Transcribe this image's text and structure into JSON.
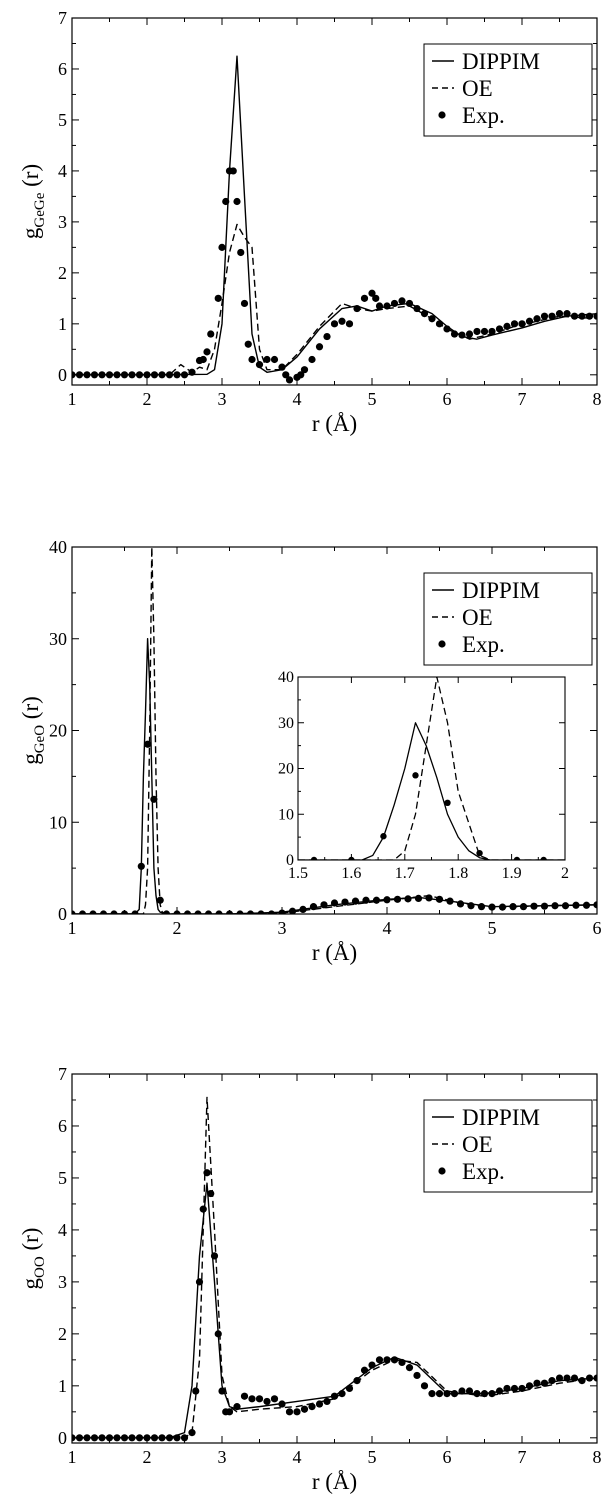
{
  "chart_data": [
    {
      "type": "line",
      "id": "gege",
      "ylabel_main": "g",
      "ylabel_sub": "GeGe",
      "ylabel_tail": " (r)",
      "xlabel": "r (Å)",
      "xlim": [
        1,
        8
      ],
      "ylim": [
        -0.2,
        7
      ],
      "xticks": [
        1,
        2,
        3,
        4,
        5,
        6,
        7,
        8
      ],
      "yticks": [
        0,
        1,
        2,
        3,
        4,
        5,
        6,
        7
      ],
      "legend_position": "top-right",
      "series": [
        {
          "name": "DIPPIM",
          "style": "solid",
          "x": [
            1,
            2.0,
            2.8,
            2.9,
            3.0,
            3.1,
            3.2,
            3.3,
            3.4,
            3.5,
            3.6,
            3.8,
            4.0,
            4.3,
            4.6,
            4.8,
            5.0,
            5.2,
            5.5,
            5.8,
            6.0,
            6.2,
            6.4,
            6.6,
            6.8,
            7.0,
            7.3,
            7.6,
            8.0
          ],
          "y": [
            0,
            0,
            0.01,
            0.1,
            1.0,
            4.0,
            6.25,
            3.5,
            0.8,
            0.15,
            0.05,
            0.1,
            0.35,
            0.9,
            1.3,
            1.35,
            1.25,
            1.35,
            1.4,
            1.2,
            0.95,
            0.75,
            0.7,
            0.78,
            0.85,
            0.92,
            1.05,
            1.15,
            1.2
          ]
        },
        {
          "name": "OE",
          "style": "dashed",
          "x": [
            1,
            2.3,
            2.45,
            2.6,
            2.7,
            2.8,
            2.9,
            3.0,
            3.1,
            3.2,
            3.3,
            3.4,
            3.5,
            3.6,
            3.8,
            4.0,
            4.3,
            4.6,
            4.8,
            5.0,
            5.2,
            5.5,
            5.8,
            6.0,
            6.3,
            6.6,
            6.9,
            7.2,
            7.5,
            8.0
          ],
          "y": [
            0,
            0,
            0.2,
            0.05,
            0.15,
            0.1,
            0.5,
            1.4,
            2.4,
            2.95,
            2.7,
            2.5,
            0.5,
            0.1,
            0.1,
            0.4,
            0.95,
            1.4,
            1.3,
            1.25,
            1.3,
            1.35,
            1.1,
            0.9,
            0.7,
            0.8,
            0.95,
            1.05,
            1.15,
            1.1
          ]
        },
        {
          "name": "Exp.",
          "style": "dots",
          "x": [
            1.0,
            1.1,
            1.2,
            1.3,
            1.4,
            1.5,
            1.6,
            1.7,
            1.8,
            1.9,
            2.0,
            2.1,
            2.2,
            2.3,
            2.4,
            2.5,
            2.6,
            2.7,
            2.75,
            2.8,
            2.85,
            2.95,
            3.0,
            3.05,
            3.1,
            3.15,
            3.2,
            3.25,
            3.3,
            3.35,
            3.4,
            3.5,
            3.6,
            3.7,
            3.8,
            3.85,
            3.9,
            4.0,
            4.05,
            4.1,
            4.2,
            4.3,
            4.4,
            4.5,
            4.6,
            4.7,
            4.8,
            4.9,
            5.0,
            5.05,
            5.1,
            5.2,
            5.3,
            5.4,
            5.5,
            5.6,
            5.7,
            5.8,
            5.9,
            6.0,
            6.1,
            6.2,
            6.3,
            6.4,
            6.5,
            6.6,
            6.7,
            6.8,
            6.9,
            7.0,
            7.1,
            7.2,
            7.3,
            7.4,
            7.5,
            7.6,
            7.7,
            7.8,
            7.9,
            8.0
          ],
          "y": [
            0,
            0,
            0,
            0,
            0,
            0,
            0,
            0,
            0,
            0,
            0,
            0,
            0,
            0,
            0,
            0,
            0.05,
            0.28,
            0.3,
            0.45,
            0.8,
            1.5,
            2.5,
            3.4,
            4.0,
            4.0,
            3.4,
            2.4,
            1.4,
            0.6,
            0.3,
            0.2,
            0.3,
            0.3,
            0.15,
            0.0,
            -0.1,
            -0.05,
            0.0,
            0.1,
            0.3,
            0.55,
            0.75,
            1.0,
            1.05,
            1.0,
            1.3,
            1.5,
            1.6,
            1.5,
            1.35,
            1.35,
            1.4,
            1.45,
            1.4,
            1.3,
            1.2,
            1.1,
            1.0,
            0.9,
            0.8,
            0.78,
            0.8,
            0.85,
            0.85,
            0.85,
            0.9,
            0.95,
            1.0,
            1.0,
            1.05,
            1.1,
            1.15,
            1.15,
            1.2,
            1.2,
            1.15,
            1.15,
            1.15,
            1.15
          ]
        }
      ]
    },
    {
      "type": "line",
      "id": "geo",
      "ylabel_main": "g",
      "ylabel_sub": "GeO",
      "ylabel_tail": " (r)",
      "xlabel": "r (Å)",
      "xlim": [
        1,
        6
      ],
      "ylim": [
        0,
        40
      ],
      "xticks": [
        1,
        2,
        3,
        4,
        5,
        6
      ],
      "yticks": [
        0,
        10,
        20,
        30,
        40
      ],
      "legend_position": "top-right",
      "series": [
        {
          "name": "DIPPIM",
          "style": "solid",
          "x": [
            1,
            1.55,
            1.6,
            1.64,
            1.66,
            1.68,
            1.7,
            1.72,
            1.74,
            1.76,
            1.78,
            1.8,
            1.82,
            1.84,
            1.9,
            2.0,
            2.5,
            3.0,
            3.5,
            4.0,
            4.3,
            4.6,
            5.0,
            5.5,
            6.0
          ],
          "y": [
            0,
            0,
            0,
            0.5,
            5,
            15,
            22,
            30,
            25,
            15,
            5,
            2,
            0.5,
            0.2,
            0,
            0,
            0,
            0.2,
            1,
            1.6,
            1.8,
            1.4,
            0.8,
            0.9,
            1.0
          ]
        },
        {
          "name": "OE",
          "style": "dashed",
          "x": [
            1,
            1.6,
            1.68,
            1.7,
            1.72,
            1.74,
            1.76,
            1.78,
            1.8,
            1.82,
            1.84,
            1.86,
            1.9,
            2.0,
            2.5,
            3.0,
            3.5,
            4.0,
            4.4,
            4.7,
            5.0,
            5.5,
            6.0
          ],
          "y": [
            0,
            0,
            0,
            1,
            5,
            20,
            40,
            30,
            15,
            5,
            1,
            0.2,
            0,
            0,
            0,
            0.1,
            0.8,
            1.5,
            2.0,
            1.2,
            0.7,
            0.9,
            1.0
          ]
        },
        {
          "name": "Exp.",
          "style": "dots",
          "x": [
            1.0,
            1.1,
            1.2,
            1.3,
            1.4,
            1.5,
            1.6,
            1.66,
            1.72,
            1.78,
            1.84,
            1.9,
            2.0,
            2.1,
            2.2,
            2.3,
            2.4,
            2.5,
            2.6,
            2.7,
            2.8,
            2.9,
            3.0,
            3.1,
            3.2,
            3.3,
            3.4,
            3.5,
            3.6,
            3.7,
            3.8,
            3.9,
            4.0,
            4.1,
            4.2,
            4.3,
            4.4,
            4.5,
            4.6,
            4.7,
            4.8,
            4.9,
            5.0,
            5.1,
            5.2,
            5.3,
            5.4,
            5.5,
            5.6,
            5.7,
            5.8,
            5.9,
            6.0
          ],
          "y": [
            0,
            0,
            0,
            0,
            0,
            0,
            0,
            5.2,
            18.5,
            12.5,
            1.5,
            0,
            0,
            0,
            0,
            0,
            0,
            0,
            0,
            0,
            0,
            0,
            0.1,
            0.3,
            0.5,
            0.8,
            1.0,
            1.2,
            1.3,
            1.4,
            1.5,
            1.5,
            1.55,
            1.6,
            1.65,
            1.7,
            1.75,
            1.6,
            1.4,
            1.1,
            0.9,
            0.8,
            0.75,
            0.75,
            0.8,
            0.8,
            0.85,
            0.85,
            0.9,
            0.9,
            0.95,
            0.95,
            1.0
          ]
        }
      ],
      "inset": {
        "xlim": [
          1.5,
          2
        ],
        "ylim": [
          0,
          40
        ],
        "xticks": [
          1.5,
          1.6,
          1.7,
          1.8,
          1.9,
          2
        ],
        "xtick_labels": [
          "1.5",
          "1.6",
          "1.7",
          "1.8",
          "1.9",
          "2"
        ],
        "yticks": [
          0,
          10,
          20,
          30,
          40
        ],
        "series": [
          {
            "name": "DIPPIM",
            "style": "solid",
            "x": [
              1.5,
              1.62,
              1.64,
              1.66,
              1.68,
              1.7,
              1.72,
              1.74,
              1.76,
              1.78,
              1.8,
              1.82,
              1.84,
              1.86,
              2.0
            ],
            "y": [
              0,
              0,
              1,
              5,
              12,
              20,
              30,
              25,
              18,
              10,
              5,
              2,
              0.5,
              0,
              0
            ]
          },
          {
            "name": "OE",
            "style": "dashed",
            "x": [
              1.5,
              1.68,
              1.7,
              1.72,
              1.74,
              1.76,
              1.78,
              1.8,
              1.82,
              1.84,
              1.86,
              2.0
            ],
            "y": [
              0,
              0,
              2,
              10,
              25,
              40,
              30,
              15,
              8,
              1,
              0,
              0
            ]
          },
          {
            "name": "Exp.",
            "style": "dots",
            "x": [
              1.53,
              1.6,
              1.66,
              1.72,
              1.78,
              1.84,
              1.91,
              1.96
            ],
            "y": [
              0,
              0,
              5.2,
              18.5,
              12.5,
              1.5,
              0,
              0
            ]
          }
        ]
      }
    },
    {
      "type": "line",
      "id": "oo",
      "ylabel_main": "g",
      "ylabel_sub": "OO",
      "ylabel_tail": " (r)",
      "xlabel": "r (Å)",
      "xlim": [
        1,
        8
      ],
      "ylim": [
        -0.1,
        7
      ],
      "xticks": [
        1,
        2,
        3,
        4,
        5,
        6,
        7,
        8
      ],
      "yticks": [
        0,
        1,
        2,
        3,
        4,
        5,
        6,
        7
      ],
      "legend_position": "top-right",
      "series": [
        {
          "name": "DIPPIM",
          "style": "solid",
          "x": [
            1,
            2.3,
            2.5,
            2.6,
            2.7,
            2.8,
            2.9,
            3.0,
            3.1,
            3.2,
            3.5,
            4.0,
            4.5,
            5.0,
            5.3,
            5.6,
            6.0,
            6.5,
            7.0,
            7.5,
            8.0
          ],
          "y": [
            0,
            0,
            0.1,
            1.0,
            3.5,
            4.9,
            3.0,
            1.0,
            0.6,
            0.55,
            0.6,
            0.7,
            0.8,
            1.35,
            1.55,
            1.4,
            0.85,
            0.85,
            0.95,
            1.1,
            1.15
          ]
        },
        {
          "name": "OE",
          "style": "dashed",
          "x": [
            1,
            2.5,
            2.6,
            2.7,
            2.8,
            2.9,
            3.0,
            3.1,
            3.2,
            3.5,
            4.0,
            4.5,
            5.0,
            5.3,
            5.6,
            6.0,
            6.5,
            7.0,
            7.5,
            8.0
          ],
          "y": [
            0,
            0,
            0.1,
            1.5,
            6.55,
            4.0,
            1.2,
            0.6,
            0.5,
            0.55,
            0.6,
            0.75,
            1.3,
            1.5,
            1.45,
            0.9,
            0.8,
            0.9,
            1.05,
            1.15
          ]
        },
        {
          "name": "Exp.",
          "style": "dots",
          "x": [
            1.0,
            1.1,
            1.2,
            1.3,
            1.4,
            1.5,
            1.6,
            1.7,
            1.8,
            1.9,
            2.0,
            2.1,
            2.2,
            2.3,
            2.4,
            2.5,
            2.6,
            2.65,
            2.7,
            2.75,
            2.8,
            2.85,
            2.9,
            2.95,
            3.0,
            3.05,
            3.1,
            3.2,
            3.3,
            3.4,
            3.5,
            3.6,
            3.7,
            3.8,
            3.9,
            4.0,
            4.1,
            4.2,
            4.3,
            4.4,
            4.5,
            4.6,
            4.7,
            4.8,
            4.9,
            5.0,
            5.1,
            5.2,
            5.3,
            5.4,
            5.5,
            5.6,
            5.7,
            5.8,
            5.9,
            6.0,
            6.1,
            6.2,
            6.3,
            6.4,
            6.5,
            6.6,
            6.7,
            6.8,
            6.9,
            7.0,
            7.1,
            7.2,
            7.3,
            7.4,
            7.5,
            7.6,
            7.7,
            7.8,
            7.9,
            8.0
          ],
          "y": [
            0,
            0,
            0,
            0,
            0,
            0,
            0,
            0,
            0,
            0,
            0,
            0,
            0,
            0,
            0,
            0,
            0.1,
            0.9,
            3.0,
            4.4,
            5.1,
            4.7,
            3.5,
            2.0,
            0.9,
            0.5,
            0.5,
            0.6,
            0.8,
            0.75,
            0.75,
            0.7,
            0.75,
            0.65,
            0.5,
            0.5,
            0.55,
            0.6,
            0.65,
            0.7,
            0.8,
            0.85,
            0.95,
            1.1,
            1.3,
            1.4,
            1.5,
            1.5,
            1.5,
            1.45,
            1.35,
            1.2,
            1.0,
            0.85,
            0.85,
            0.85,
            0.85,
            0.9,
            0.9,
            0.85,
            0.85,
            0.85,
            0.9,
            0.95,
            0.95,
            0.95,
            1.0,
            1.05,
            1.05,
            1.1,
            1.15,
            1.15,
            1.15,
            1.1,
            1.15,
            1.15
          ]
        }
      ]
    }
  ]
}
